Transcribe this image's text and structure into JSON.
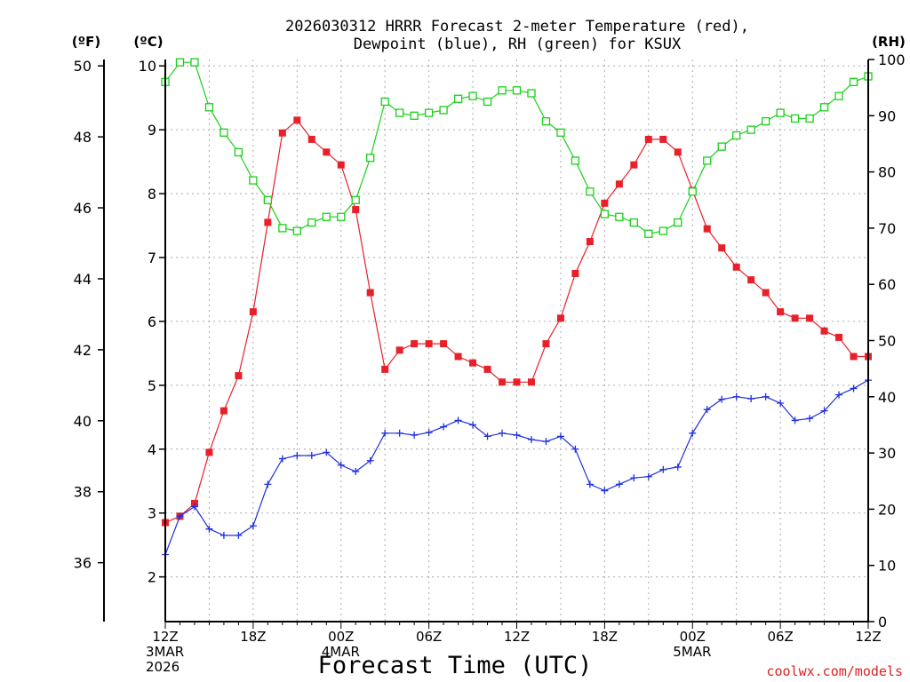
{
  "chart_data": {
    "type": "line",
    "title_lines": [
      "2026030312 HRRR Forecast 2-meter Temperature (red),",
      "Dewpoint (blue), RH (green) for KSUX"
    ],
    "xlabel": "Forecast Time (UTC)",
    "credit": "coolwx.com/models",
    "axes": {
      "fahrenheit": {
        "label": "(ºF)",
        "ticks": [
          36,
          38,
          40,
          42,
          44,
          46,
          48,
          50
        ]
      },
      "celsius": {
        "label": "(ºC)",
        "ylim": [
          1.3,
          10.1
        ],
        "ticks": [
          2,
          3,
          4,
          5,
          6,
          7,
          8,
          9,
          10
        ]
      },
      "rh": {
        "label": "(RH)",
        "ylim": [
          0,
          100
        ],
        "ticks": [
          0,
          10,
          20,
          30,
          40,
          50,
          60,
          70,
          80,
          90,
          100
        ]
      },
      "x": {
        "range_hours": [
          0,
          48
        ],
        "ticks": [
          {
            "hour": 0,
            "lines": [
              "12Z",
              "3MAR",
              "2026"
            ]
          },
          {
            "hour": 6,
            "lines": [
              "18Z"
            ]
          },
          {
            "hour": 12,
            "lines": [
              "00Z",
              "4MAR"
            ]
          },
          {
            "hour": 18,
            "lines": [
              "06Z"
            ]
          },
          {
            "hour": 24,
            "lines": [
              "12Z"
            ]
          },
          {
            "hour": 30,
            "lines": [
              "18Z"
            ]
          },
          {
            "hour": 36,
            "lines": [
              "00Z",
              "5MAR"
            ]
          },
          {
            "hour": 42,
            "lines": [
              "06Z"
            ]
          },
          {
            "hour": 48,
            "lines": [
              "12Z"
            ]
          }
        ]
      }
    },
    "grid": true,
    "series": [
      {
        "name": "Temperature",
        "unit": "C",
        "color": "#e8202a",
        "marker": "filled-square",
        "values": [
          2.85,
          2.95,
          3.15,
          3.95,
          4.6,
          5.15,
          6.15,
          7.55,
          8.95,
          9.15,
          8.85,
          8.65,
          8.45,
          7.75,
          6.45,
          5.25,
          5.55,
          5.65,
          5.65,
          5.65,
          5.45,
          5.35,
          5.25,
          5.05,
          5.05,
          5.05,
          5.65,
          6.05,
          6.75,
          7.25,
          7.85,
          8.15,
          8.45,
          8.85,
          8.85,
          8.65,
          8.05,
          7.45,
          7.15,
          6.85,
          6.65,
          6.45,
          6.15,
          6.05,
          6.05,
          5.85,
          5.75,
          5.45,
          5.45
        ]
      },
      {
        "name": "Dewpoint",
        "unit": "C",
        "color": "#2030e0",
        "marker": "plus",
        "values": [
          2.35,
          2.95,
          3.1,
          2.75,
          2.65,
          2.65,
          2.8,
          3.45,
          3.85,
          3.9,
          3.9,
          3.95,
          3.75,
          3.65,
          3.82,
          4.25,
          4.25,
          4.22,
          4.26,
          4.35,
          4.45,
          4.38,
          4.2,
          4.25,
          4.22,
          4.15,
          4.12,
          4.2,
          4.0,
          3.45,
          3.35,
          3.45,
          3.55,
          3.57,
          3.68,
          3.72,
          4.25,
          4.62,
          4.78,
          4.82,
          4.79,
          4.82,
          4.72,
          4.45,
          4.48,
          4.6,
          4.85,
          4.95,
          5.08
        ]
      },
      {
        "name": "RH",
        "unit": "%",
        "color": "#18d018",
        "marker": "open-square",
        "values": [
          96,
          99.5,
          99.5,
          91.5,
          87,
          83.5,
          78.5,
          75,
          70,
          69.5,
          71,
          72,
          72,
          75,
          82.5,
          92.5,
          90.5,
          90,
          90.5,
          91,
          93,
          93.5,
          92.5,
          94.5,
          94.5,
          94,
          89,
          87,
          82,
          76.5,
          72.5,
          72,
          71,
          69,
          69.5,
          71,
          76.5,
          82,
          84.5,
          86.5,
          87.5,
          89,
          90.5,
          89.5,
          89.5,
          91.5,
          93.5,
          96,
          97
        ]
      }
    ]
  }
}
